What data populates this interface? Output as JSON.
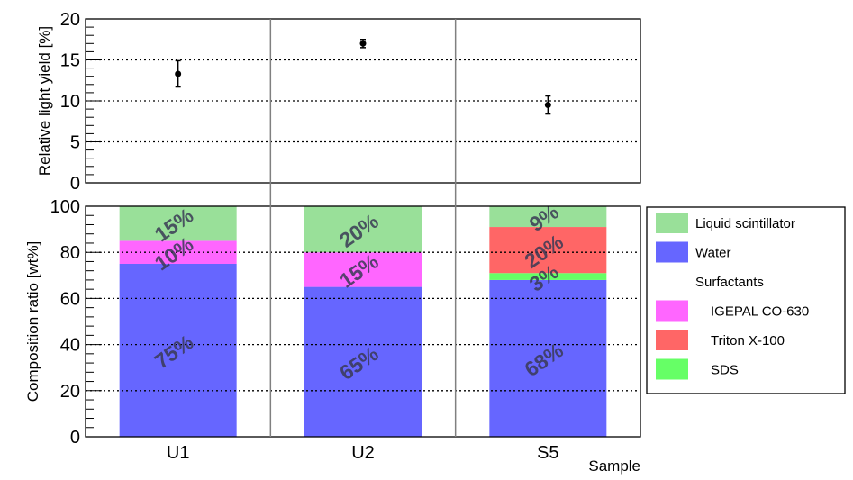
{
  "chart_data": [
    {
      "type": "scatter",
      "ylabel": "Relative light yield [%]",
      "ylim": [
        0,
        20
      ],
      "yticks": [
        "0",
        "5",
        "10",
        "15",
        "20"
      ],
      "grid": "horizontal dotted",
      "points": [
        {
          "x": "U1",
          "y": 13.3,
          "err": 1.6
        },
        {
          "x": "U2",
          "y": 17.0,
          "err": 0.5
        },
        {
          "x": "S5",
          "y": 9.5,
          "err": 1.1
        }
      ]
    },
    {
      "type": "bar",
      "stacked": true,
      "xlabel": "Sample",
      "ylabel": "Composition ratio [wt%]",
      "ylim": [
        0,
        100
      ],
      "yticks": [
        "0",
        "20",
        "40",
        "60",
        "80",
        "100"
      ],
      "categories": [
        "U1",
        "U2",
        "S5"
      ],
      "series": [
        {
          "name": "Water",
          "color": "#6666ff",
          "values": [
            75,
            65,
            68
          ],
          "labels": [
            "75%",
            "65%",
            "68%"
          ]
        },
        {
          "name": "SDS",
          "color": "#66ff66",
          "values": [
            0,
            0,
            3
          ],
          "labels": [
            "",
            "",
            "3%"
          ]
        },
        {
          "name": "IGEPAL CO-630",
          "color": "#ff66ff",
          "values": [
            10,
            15,
            0
          ],
          "labels": [
            "10%",
            "15%",
            ""
          ]
        },
        {
          "name": "Triton X-100",
          "color": "#ff6666",
          "values": [
            0,
            0,
            20
          ],
          "labels": [
            "",
            "",
            "20%"
          ]
        },
        {
          "name": "Liquid scintillator",
          "color": "#99e099",
          "values": [
            15,
            20,
            9
          ],
          "labels": [
            "15%",
            "20%",
            "9%"
          ]
        }
      ],
      "legend": {
        "placement": "right",
        "entries": [
          {
            "label": "Liquid scintillator",
            "color": "#99e099"
          },
          {
            "label": "Water",
            "color": "#6666ff"
          },
          {
            "label": "Surfactants",
            "color": ""
          },
          {
            "label": "IGEPAL CO-630",
            "color": "#ff66ff"
          },
          {
            "label": "Triton X-100",
            "color": "#ff6666"
          },
          {
            "label": "SDS",
            "color": "#66ff66"
          }
        ]
      }
    }
  ]
}
